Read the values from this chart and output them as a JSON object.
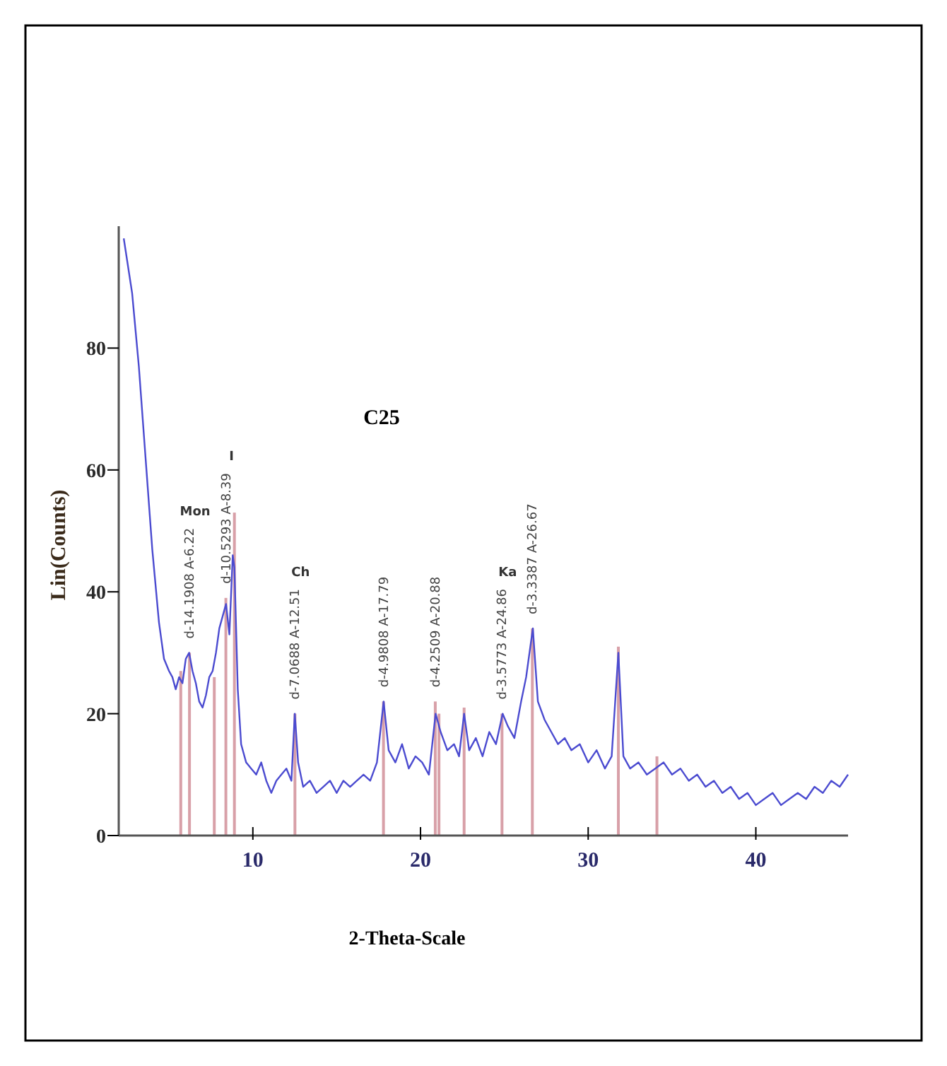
{
  "chart_data": {
    "type": "line",
    "title": "C25",
    "xlabel": "2-Theta-Scale",
    "ylabel": "Lin(Counts)",
    "xlim": [
      2,
      45.5
    ],
    "xticks": [
      10,
      20,
      30,
      40
    ],
    "ylim": [
      0,
      100
    ],
    "yticks": [
      0,
      20,
      40,
      60,
      80
    ],
    "grid": false,
    "series": [
      {
        "color": "#4b4bd0",
        "x": [
          2.3,
          2.8,
          3.2,
          3.6,
          4.0,
          4.4,
          4.7,
          5.0,
          5.2,
          5.4,
          5.6,
          5.8,
          6.0,
          6.2,
          6.4,
          6.6,
          6.8,
          7.0,
          7.2,
          7.4,
          7.6,
          7.8,
          8.0,
          8.2,
          8.4,
          8.6,
          8.8,
          8.9,
          9.1,
          9.3,
          9.6,
          9.9,
          10.2,
          10.5,
          10.8,
          11.1,
          11.4,
          11.7,
          12.0,
          12.3,
          12.5,
          12.7,
          13.0,
          13.4,
          13.8,
          14.2,
          14.6,
          15.0,
          15.4,
          15.8,
          16.2,
          16.6,
          17.0,
          17.4,
          17.8,
          18.1,
          18.5,
          18.9,
          19.3,
          19.7,
          20.1,
          20.5,
          20.9,
          21.2,
          21.6,
          22.0,
          22.3,
          22.6,
          22.9,
          23.3,
          23.7,
          24.1,
          24.5,
          24.9,
          25.2,
          25.6,
          26.0,
          26.3,
          26.7,
          27.0,
          27.4,
          27.8,
          28.2,
          28.6,
          29.0,
          29.5,
          30.0,
          30.5,
          31.0,
          31.4,
          31.8,
          32.1,
          32.5,
          33.0,
          33.5,
          34.0,
          34.5,
          35.0,
          35.5,
          36.0,
          36.5,
          37.0,
          37.5,
          38.0,
          38.5,
          39.0,
          39.5,
          40.0,
          40.5,
          41.0,
          41.5,
          42.0,
          42.5,
          43.0,
          43.5,
          44.0,
          44.5,
          45.0,
          45.5
        ],
        "values": [
          98,
          89,
          77,
          62,
          47,
          35,
          29,
          27,
          26,
          24,
          26,
          25,
          29,
          30,
          27,
          25,
          22,
          21,
          23,
          26,
          27,
          30,
          34,
          36,
          38,
          33,
          46,
          44,
          24,
          15,
          12,
          11,
          10,
          12,
          9,
          7,
          9,
          10,
          11,
          9,
          20,
          12,
          8,
          9,
          7,
          8,
          9,
          7,
          9,
          8,
          9,
          10,
          9,
          12,
          22,
          14,
          12,
          15,
          11,
          13,
          12,
          10,
          20,
          17,
          14,
          15,
          13,
          20,
          14,
          16,
          13,
          17,
          15,
          20,
          18,
          16,
          22,
          26,
          34,
          22,
          19,
          17,
          15,
          16,
          14,
          15,
          12,
          14,
          11,
          13,
          30,
          13,
          11,
          12,
          10,
          11,
          12,
          10,
          11,
          9,
          10,
          8,
          9,
          7,
          8,
          6,
          7,
          5,
          6,
          7,
          5,
          6,
          7,
          6,
          8,
          7,
          9,
          8,
          10
        ]
      },
      {
        "type": "bar",
        "color": "#d8a0a8",
        "x": [
          5.7,
          6.22,
          7.7,
          8.39,
          8.9,
          12.51,
          17.79,
          20.88,
          21.1,
          22.6,
          24.86,
          26.67,
          31.8,
          34.1
        ],
        "values": [
          27,
          30,
          26,
          39,
          53,
          20,
          22,
          22,
          20,
          21,
          20,
          34,
          31,
          13
        ]
      }
    ],
    "annotations": [
      {
        "text": "d-14.1908 A-6.22",
        "x": 6.22,
        "y": 30
      },
      "Mon",
      {
        "text": "d-10.5293 A-8.39",
        "x": 8.39,
        "y": 39
      },
      "I",
      {
        "text": "d-7.0688 A-12.51",
        "x": 12.51,
        "y": 20
      },
      "Ch",
      {
        "text": "d-4.9808 A-17.79",
        "x": 17.79,
        "y": 22
      },
      {
        "text": "d-4.2509 A-20.88",
        "x": 20.88,
        "y": 22
      },
      {
        "text": "d-3.5773 A-24.86",
        "x": 24.86,
        "y": 20
      },
      "Ka",
      {
        "text": "d-3.3387 A-26.67",
        "x": 26.67,
        "y": 34
      }
    ]
  }
}
